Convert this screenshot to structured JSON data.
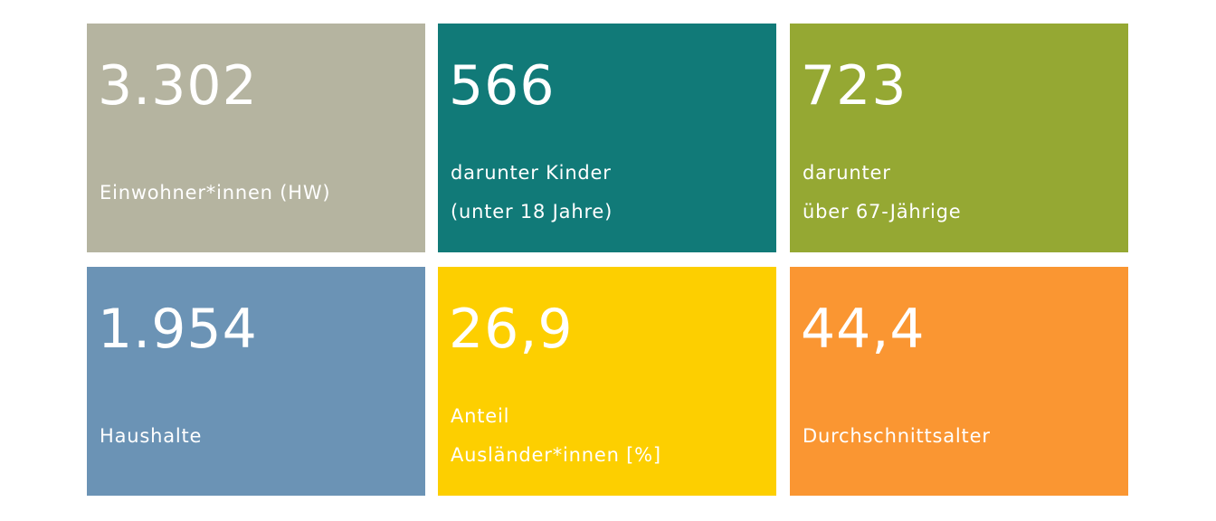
{
  "tiles": [
    {
      "value": "3.302",
      "label": [
        "Einwohner*innen (HW)"
      ],
      "color": "#b5b4a0"
    },
    {
      "value": "566",
      "label": [
        "darunter Kinder",
        "(unter 18 Jahre)"
      ],
      "color": "#117a78"
    },
    {
      "value": "723",
      "label": [
        "darunter",
        "über 67-Jährige"
      ],
      "color": "#95a833"
    },
    {
      "value": "1.954",
      "label": [
        "Haushalte"
      ],
      "color": "#6b93b5"
    },
    {
      "value": "26,9",
      "label": [
        "Anteil",
        "Ausländer*innen [%]"
      ],
      "color": "#fdcf00"
    },
    {
      "value": "44,4",
      "label": [
        "Durchschnittsalter"
      ],
      "color": "#fa9632"
    }
  ]
}
